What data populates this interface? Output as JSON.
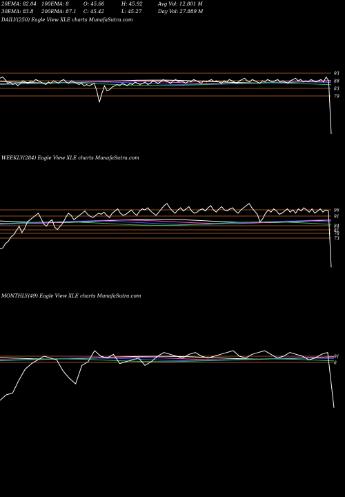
{
  "header": {
    "ema20": "20EMA: 82.04",
    "ema30": "30EMA: 83.8",
    "ema100": "100EMA: 8",
    "ema200": "200EMA: 87.1",
    "open": "O: 45.66",
    "close": "C: 45.42",
    "high": "H: 45.92",
    "low": "L: 45.27",
    "avg_vol": "Avg Vol: 12.801 M",
    "day_vol": "Day Vol: 27.889 M"
  },
  "panels": {
    "daily": {
      "label": "DAILY(250) Eagle View XLE charts MunafaSutra.com"
    },
    "weekly": {
      "label": "WEEKLY(284) Eagle View XLE charts MunafaSutra.com"
    },
    "monthly": {
      "label": "MONTHLY(49) Eagle View XLE charts MunafaSutra.com"
    }
  },
  "colors": {
    "background": "#000000",
    "price": "#ffffff",
    "ema_blue": "#3b5bff",
    "ema_pink": "#ff55cc",
    "ema_white": "#ffffff",
    "ema_green": "#2fbf4f",
    "level_line": "#c86a2a"
  },
  "chart_data": [
    {
      "type": "line",
      "title": "DAILY(250) Eagle View XLE charts MunafaSutra.com",
      "level_labels": [
        "93",
        "88",
        "83",
        "79"
      ],
      "series": [
        {
          "values": [
            90,
            91,
            89,
            86,
            87,
            85,
            86,
            84,
            86,
            88,
            87,
            86,
            88,
            87,
            89,
            88,
            87,
            86,
            85,
            87,
            86,
            88,
            87,
            86,
            88,
            89,
            87,
            86,
            88,
            87,
            86,
            85,
            86,
            84,
            85,
            84,
            85,
            86,
            80,
            71,
            78,
            84,
            80,
            81,
            83,
            84,
            85,
            84,
            86,
            85,
            84,
            86,
            85,
            87,
            86,
            85,
            86,
            87,
            85,
            86,
            88,
            87,
            86,
            87,
            89,
            88,
            87,
            86,
            88,
            89,
            87,
            88,
            87,
            86,
            88,
            87,
            89,
            88,
            87,
            86,
            88,
            87,
            88,
            89,
            87,
            88,
            87,
            86,
            88,
            87,
            89,
            88,
            87,
            86,
            88,
            89,
            90,
            88,
            87,
            89,
            88,
            87,
            86,
            88,
            87,
            89,
            88,
            87,
            88,
            89,
            87,
            88,
            87,
            86,
            88,
            89,
            90,
            88,
            89,
            87,
            88,
            87,
            89,
            88,
            87,
            88,
            89,
            87,
            91,
            88,
            46
          ]
        }
      ]
    },
    {
      "type": "line",
      "title": "WEEKLY(284) Eagle View XLE charts MunafaSutra.com",
      "level_labels": [
        "96",
        "91",
        "84",
        "81",
        "78",
        "73"
      ],
      "series": [
        {
          "values": [
            55,
            56,
            60,
            62,
            66,
            68,
            72,
            76,
            70,
            74,
            80,
            82,
            84,
            86,
            88,
            83,
            78,
            76,
            80,
            82,
            75,
            73,
            76,
            79,
            84,
            88,
            86,
            82,
            84,
            86,
            88,
            90,
            87,
            85,
            84,
            86,
            88,
            87,
            89,
            86,
            84,
            88,
            90,
            92,
            88,
            86,
            87,
            89,
            91,
            88,
            86,
            90,
            92,
            91,
            93,
            90,
            88,
            86,
            89,
            92,
            95,
            97,
            93,
            90,
            88,
            91,
            93,
            90,
            92,
            94,
            90,
            88,
            89,
            91,
            92,
            90,
            93,
            95,
            91,
            89,
            92,
            94,
            91,
            90,
            92,
            93,
            90,
            88,
            91,
            93,
            95,
            97,
            93,
            90,
            87,
            80,
            83,
            88,
            91,
            89,
            92,
            90,
            87,
            88,
            90,
            92,
            89,
            91,
            88,
            92,
            90,
            93,
            91,
            89,
            92,
            88,
            90,
            92,
            89,
            91,
            90,
            38
          ]
        }
      ]
    },
    {
      "type": "line",
      "title": "MONTHLY(49) Eagle View XLE charts MunafaSutra.com",
      "level_labels": [
        "91",
        "8"
      ],
      "series": [
        {
          "values": [
            40,
            46,
            48,
            62,
            74,
            80,
            84,
            88,
            86,
            84,
            72,
            64,
            58,
            78,
            82,
            94,
            88,
            86,
            90,
            80,
            82,
            84,
            86,
            78,
            82,
            88,
            92,
            90,
            88,
            86,
            90,
            92,
            88,
            86,
            88,
            90,
            92,
            94,
            88,
            86,
            90,
            92,
            94,
            90,
            86,
            88,
            92,
            90,
            88,
            84,
            86,
            90,
            92,
            32
          ]
        }
      ]
    }
  ]
}
